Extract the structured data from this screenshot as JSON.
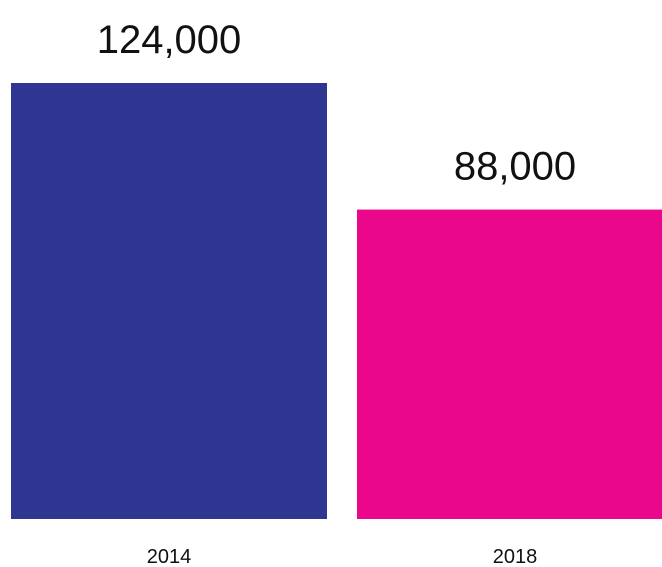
{
  "chart_data": {
    "type": "bar",
    "categories": [
      "2014",
      "2018"
    ],
    "values": [
      124000,
      88000
    ],
    "value_labels": [
      "124,000",
      "88,000"
    ],
    "colors": [
      "#2e3691",
      "#ea078b"
    ],
    "title": "",
    "xlabel": "",
    "ylabel": "",
    "ylim": [
      0,
      124000
    ],
    "grid": false,
    "legend": "none"
  }
}
